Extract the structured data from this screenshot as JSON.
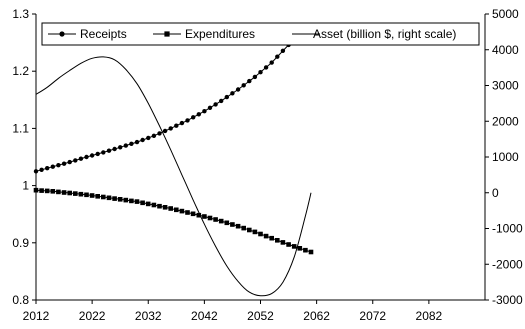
{
  "chart_data": {
    "type": "line",
    "title": "",
    "xlabel": "",
    "ylabel": "",
    "y2label": "",
    "xlim": [
      2012,
      2092
    ],
    "ylim": [
      0.8,
      1.3
    ],
    "y2lim": [
      -3000,
      5000
    ],
    "x_ticks": [
      "2012",
      "2022",
      "2032",
      "2042",
      "2052",
      "2062",
      "2072",
      "2082"
    ],
    "y_ticks": [
      "0.8",
      "0.9",
      "1",
      "1.1",
      "1.2",
      "1.3"
    ],
    "y2_ticks": [
      "-3000",
      "-2000",
      "-1000",
      "0",
      "1000",
      "2000",
      "3000",
      "4000",
      "5000"
    ],
    "grid": false,
    "legend_position": "top",
    "series": [
      {
        "name": "Receipts",
        "axis": "left",
        "marker": "circle",
        "color": "#000000",
        "x": [
          2012,
          2015,
          2018,
          2021,
          2024,
          2027,
          2030,
          2033,
          2036,
          2039,
          2042,
          2045,
          2048,
          2051,
          2054,
          2057,
          2059
        ],
        "values": [
          1.025,
          1.033,
          1.041,
          1.05,
          1.058,
          1.067,
          1.076,
          1.087,
          1.1,
          1.114,
          1.13,
          1.148,
          1.168,
          1.19,
          1.215,
          1.246,
          1.27
        ]
      },
      {
        "name": "Expenditures",
        "axis": "left",
        "marker": "square",
        "color": "#000000",
        "x": [
          2012,
          2015,
          2018,
          2021,
          2024,
          2027,
          2030,
          2033,
          2036,
          2039,
          2042,
          2045,
          2048,
          2051,
          2054,
          2057,
          2060,
          2061
        ],
        "values": [
          0.992,
          0.99,
          0.987,
          0.984,
          0.98,
          0.976,
          0.972,
          0.966,
          0.96,
          0.953,
          0.946,
          0.938,
          0.929,
          0.919,
          0.908,
          0.897,
          0.887,
          0.884
        ]
      },
      {
        "name": "Asset (billion $, right scale)",
        "axis": "right",
        "marker": "none",
        "color": "#000000",
        "x": [
          2012,
          2014,
          2016,
          2018,
          2020,
          2022,
          2024,
          2026,
          2028,
          2030,
          2032,
          2034,
          2036,
          2038,
          2040,
          2042,
          2044,
          2046,
          2048,
          2050,
          2052,
          2054,
          2056,
          2058,
          2060,
          2061
        ],
        "values": [
          2750,
          2950,
          3200,
          3420,
          3620,
          3760,
          3800,
          3720,
          3450,
          3050,
          2500,
          1870,
          1200,
          500,
          -200,
          -880,
          -1500,
          -2050,
          -2480,
          -2780,
          -2880,
          -2820,
          -2500,
          -1800,
          -650,
          0
        ]
      }
    ]
  }
}
